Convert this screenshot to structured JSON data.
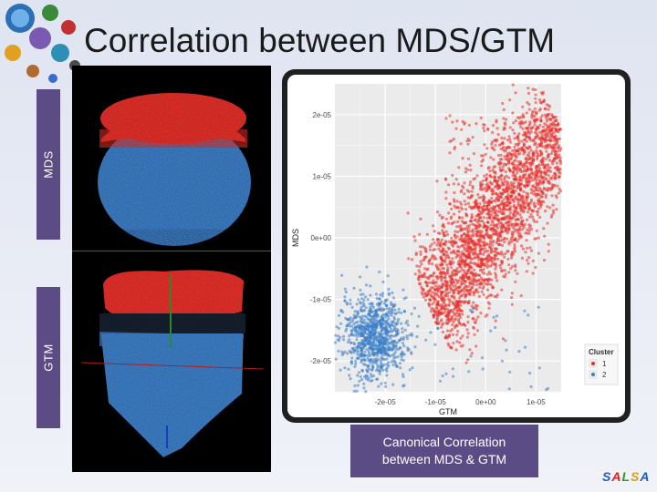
{
  "slide": {
    "title": "Correlation between MDS/GTM",
    "side_labels": {
      "top": "MDS",
      "bottom": "GTM"
    },
    "caption": {
      "line1": "Canonical Correlation",
      "line2": "between MDS & GTM"
    },
    "brand": {
      "letters": [
        "S",
        "A",
        "L",
        "S",
        "A"
      ],
      "colors": [
        "#1f5fc2",
        "#e02020",
        "#2a9a2a",
        "#e0a000",
        "#1f5fc2"
      ]
    }
  },
  "colors": {
    "cluster1": "#e8302a",
    "cluster2": "#3d7fc8",
    "accent_purple": "#5c4c86"
  },
  "chart_data": {
    "type": "scatter",
    "title": "",
    "xlabel": "GTM",
    "ylabel": "MDS",
    "xlim": [
      -3e-05,
      1.5e-05
    ],
    "ylim": [
      -2.5e-05,
      2.5e-05
    ],
    "x_ticks": [
      "-2e-05",
      "-1e-05",
      "0e+00",
      "1e-05"
    ],
    "y_ticks": [
      "2e-05",
      "1e-05",
      "0e+00",
      "-1e-05",
      "-2e-05"
    ],
    "grid": true,
    "legend": {
      "title": "Cluster",
      "position": "right",
      "entries": [
        "1",
        "2"
      ]
    },
    "series": [
      {
        "name": "1",
        "color": "#e8302a",
        "center": [
          1e-06,
          5e-06
        ],
        "spread": "diagonal band from (-1e-05,-1.2e-05) to (1.5e-05,1.8e-05)"
      },
      {
        "name": "2",
        "color": "#3d7fc8",
        "center": [
          -2.2e-05,
          -1.5e-05
        ],
        "spread": "circular blob radius ~6e-06"
      }
    ]
  }
}
